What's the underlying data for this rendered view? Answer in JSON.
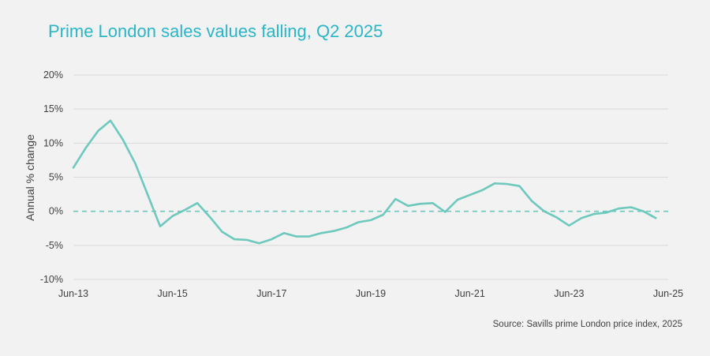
{
  "colors": {
    "title": "#2bb5c9",
    "line": "#6dc8bd",
    "grid": "#d9d9d9",
    "text": "#404040",
    "background": "#f2f2f2"
  },
  "chart_data": {
    "type": "line",
    "title": "Prime London sales values falling, Q2 2025",
    "ylabel": "Annual % change",
    "source": "Source: Savills prime London price index, 2025",
    "ylim": [
      -10,
      20
    ],
    "yticks": [
      "20%",
      "15%",
      "10%",
      "5%",
      "0%",
      "-5%",
      "-10%"
    ],
    "xtick_labels": [
      "Jun-13",
      "Jun-15",
      "Jun-17",
      "Jun-19",
      "Jun-21",
      "Jun-23",
      "Jun-25"
    ],
    "grid": "horizontal",
    "reference_line": {
      "y": 0,
      "style": "dashed"
    },
    "x": [
      "Jun-13",
      "Sep-13",
      "Dec-13",
      "Mar-14",
      "Jun-14",
      "Sep-14",
      "Dec-14",
      "Mar-15",
      "Jun-15",
      "Sep-15",
      "Dec-15",
      "Mar-16",
      "Jun-16",
      "Sep-16",
      "Dec-16",
      "Mar-17",
      "Jun-17",
      "Sep-17",
      "Dec-17",
      "Mar-18",
      "Jun-18",
      "Sep-18",
      "Dec-18",
      "Mar-19",
      "Jun-19",
      "Sep-19",
      "Dec-19",
      "Mar-20",
      "Jun-20",
      "Sep-20",
      "Dec-20",
      "Mar-21",
      "Jun-21",
      "Sep-21",
      "Dec-21",
      "Mar-22",
      "Jun-22",
      "Sep-22",
      "Dec-22",
      "Mar-23",
      "Jun-23",
      "Sep-23",
      "Dec-23",
      "Mar-24",
      "Jun-24",
      "Sep-24",
      "Dec-24",
      "Mar-25",
      "Jun-25"
    ],
    "series": [
      {
        "values": [
          6.4,
          9.3,
          11.8,
          13.3,
          10.5,
          7.0,
          2.4,
          -2.2,
          -0.7,
          0.2,
          1.2,
          -0.8,
          -3.0,
          -4.1,
          -4.2,
          -4.7,
          -4.1,
          -3.2,
          -3.7,
          -3.7,
          -3.2,
          -2.9,
          -2.4,
          -1.6,
          -1.3,
          -0.5,
          1.8,
          0.8,
          1.1,
          1.2,
          -0.1,
          1.7,
          2.4,
          3.1,
          4.1,
          4.0,
          3.7,
          1.5,
          0.0,
          -0.9,
          -2.1,
          -1.0,
          -0.4,
          -0.2,
          0.4,
          0.6,
          0.0,
          -1.0,
          null
        ]
      }
    ]
  }
}
